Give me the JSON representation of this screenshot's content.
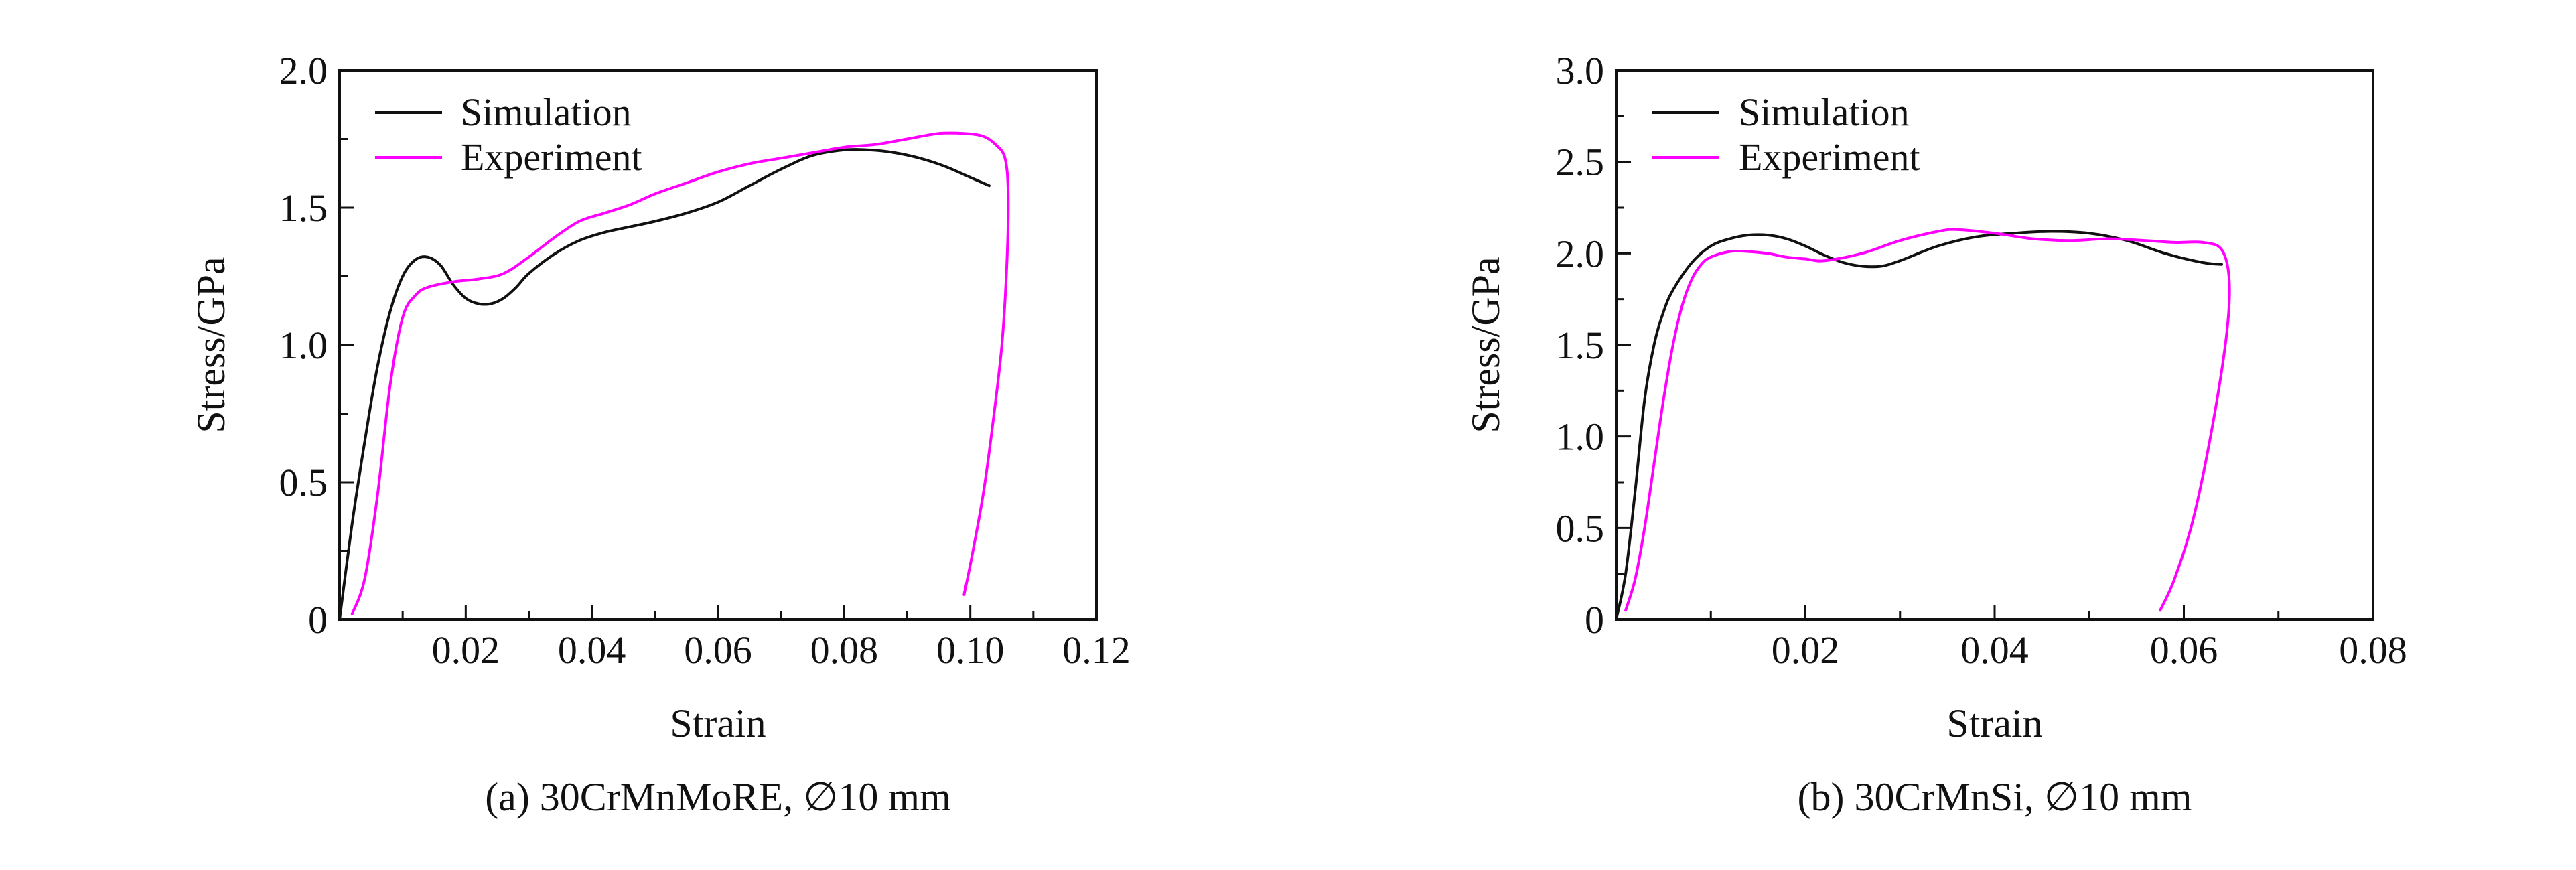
{
  "colors": {
    "simulation": "#111111",
    "experiment": "#ff00ff",
    "frame": "#111111"
  },
  "chart_data": [
    {
      "type": "line",
      "caption": "(a) 30CrMnMoRE, ∅10 mm",
      "xlabel": "Strain",
      "ylabel": "Stress/GPa",
      "xlim": [
        0,
        0.12
      ],
      "ylim": [
        0,
        2.0
      ],
      "x_ticks": [
        0.02,
        0.04,
        0.06,
        0.08,
        0.1,
        0.12
      ],
      "x_tick_labels": [
        "0.02",
        "0.04",
        "0.06",
        "0.08",
        "0.10",
        "0.12"
      ],
      "y_ticks": [
        0,
        0.5,
        1.0,
        1.5,
        2.0
      ],
      "y_tick_labels": [
        "0",
        "0.5",
        "1.0",
        "1.5",
        "2.0"
      ],
      "legend": {
        "position": "top-left",
        "entries": [
          "Simulation",
          "Experiment"
        ]
      },
      "series": [
        {
          "name": "Simulation",
          "color": "#111111",
          "x": [
            0,
            0.002,
            0.004,
            0.006,
            0.008,
            0.01,
            0.012,
            0.014,
            0.016,
            0.018,
            0.02,
            0.022,
            0.024,
            0.026,
            0.028,
            0.03,
            0.034,
            0.038,
            0.042,
            0.046,
            0.05,
            0.055,
            0.06,
            0.065,
            0.07,
            0.075,
            0.08,
            0.084,
            0.088,
            0.092,
            0.096,
            0.1,
            0.103
          ],
          "y": [
            0.0,
            0.35,
            0.65,
            0.92,
            1.12,
            1.25,
            1.31,
            1.32,
            1.29,
            1.22,
            1.17,
            1.15,
            1.15,
            1.17,
            1.21,
            1.26,
            1.33,
            1.38,
            1.41,
            1.43,
            1.45,
            1.48,
            1.52,
            1.58,
            1.64,
            1.69,
            1.71,
            1.71,
            1.7,
            1.68,
            1.65,
            1.61,
            1.58
          ]
        },
        {
          "name": "Experiment",
          "color": "#ff00ff",
          "x": [
            0.002,
            0.004,
            0.006,
            0.008,
            0.01,
            0.012,
            0.014,
            0.018,
            0.022,
            0.026,
            0.03,
            0.034,
            0.038,
            0.042,
            0.046,
            0.05,
            0.055,
            0.06,
            0.065,
            0.07,
            0.075,
            0.08,
            0.085,
            0.09,
            0.095,
            0.099,
            0.102,
            0.104,
            0.1055,
            0.106,
            0.1058,
            0.105,
            0.1035,
            0.102,
            0.1,
            0.099
          ],
          "y": [
            0.02,
            0.15,
            0.45,
            0.85,
            1.1,
            1.18,
            1.21,
            1.23,
            1.24,
            1.26,
            1.32,
            1.39,
            1.45,
            1.48,
            1.51,
            1.55,
            1.59,
            1.63,
            1.66,
            1.68,
            1.7,
            1.72,
            1.73,
            1.75,
            1.77,
            1.77,
            1.76,
            1.73,
            1.68,
            1.55,
            1.3,
            1.0,
            0.7,
            0.45,
            0.2,
            0.09
          ]
        }
      ]
    },
    {
      "type": "line",
      "caption": "(b) 30CrMnSi, ∅10 mm",
      "xlabel": "Strain",
      "ylabel": "Stress/GPa",
      "xlim": [
        0,
        0.08
      ],
      "ylim": [
        0,
        3.0
      ],
      "x_ticks": [
        0.02,
        0.04,
        0.06,
        0.08
      ],
      "x_tick_labels": [
        "0.02",
        "0.04",
        "0.06",
        "0.08"
      ],
      "y_ticks": [
        0,
        0.5,
        1.0,
        1.5,
        2.0,
        2.5,
        3.0
      ],
      "y_tick_labels": [
        "0",
        "0.5",
        "1.0",
        "1.5",
        "2.0",
        "2.5",
        "3.0"
      ],
      "legend": {
        "position": "top-left",
        "entries": [
          "Simulation",
          "Experiment"
        ]
      },
      "series": [
        {
          "name": "Simulation",
          "color": "#111111",
          "x": [
            0,
            0.001,
            0.002,
            0.003,
            0.004,
            0.005,
            0.006,
            0.008,
            0.01,
            0.012,
            0.014,
            0.016,
            0.018,
            0.02,
            0.022,
            0.024,
            0.026,
            0.028,
            0.03,
            0.034,
            0.038,
            0.042,
            0.046,
            0.05,
            0.054,
            0.058,
            0.062,
            0.064
          ],
          "y": [
            0.0,
            0.25,
            0.7,
            1.2,
            1.5,
            1.68,
            1.8,
            1.95,
            2.04,
            2.08,
            2.1,
            2.1,
            2.08,
            2.04,
            1.99,
            1.95,
            1.93,
            1.93,
            1.96,
            2.04,
            2.09,
            2.11,
            2.12,
            2.11,
            2.07,
            2.0,
            1.95,
            1.94
          ]
        },
        {
          "name": "Experiment",
          "color": "#ff00ff",
          "x": [
            0.001,
            0.002,
            0.003,
            0.004,
            0.005,
            0.006,
            0.007,
            0.008,
            0.009,
            0.01,
            0.012,
            0.014,
            0.016,
            0.018,
            0.02,
            0.022,
            0.026,
            0.03,
            0.034,
            0.036,
            0.04,
            0.044,
            0.048,
            0.052,
            0.056,
            0.059,
            0.062,
            0.064,
            0.0648,
            0.0645,
            0.063,
            0.061,
            0.059,
            0.0575
          ],
          "y": [
            0.05,
            0.22,
            0.5,
            0.85,
            1.2,
            1.5,
            1.72,
            1.86,
            1.94,
            1.98,
            2.01,
            2.01,
            2.0,
            1.98,
            1.97,
            1.96,
            2.0,
            2.07,
            2.12,
            2.13,
            2.11,
            2.08,
            2.07,
            2.08,
            2.07,
            2.06,
            2.06,
            2.02,
            1.85,
            1.55,
            1.05,
            0.55,
            0.22,
            0.05
          ]
        }
      ]
    }
  ]
}
